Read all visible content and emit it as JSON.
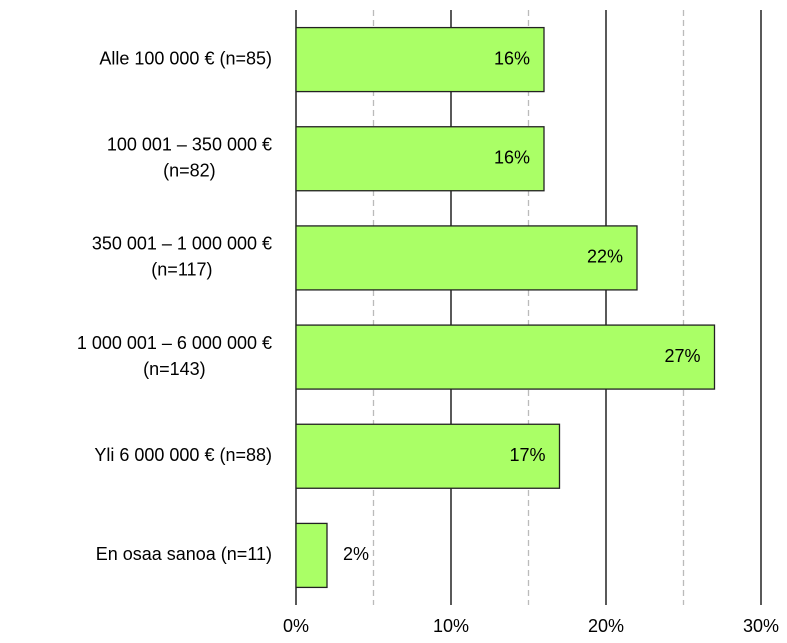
{
  "chart_data": {
    "type": "barh",
    "categories": [
      [
        "Alle 100 000 €  (n=85)"
      ],
      [
        "100 001 – 350 000 €",
        "(n=82)"
      ],
      [
        "350 001 – 1 000 000 €",
        "(n=117)"
      ],
      [
        "1 000 001 – 6 000 000 €",
        "(n=143)"
      ],
      [
        "Yli 6 000 000 € (n=88)"
      ],
      [
        "En osaa sanoa (n=11)"
      ]
    ],
    "values": [
      16,
      16,
      22,
      27,
      17,
      2
    ],
    "value_labels": [
      "16%",
      "16%",
      "22%",
      "27%",
      "17%",
      "2%"
    ],
    "color": "#aaff66",
    "xlim": [
      0,
      30
    ],
    "xticks": [
      {
        "value": 0,
        "label": "0%"
      },
      {
        "value": 10,
        "label": "10%"
      },
      {
        "value": 20,
        "label": "20%"
      },
      {
        "value": 30,
        "label": "30%"
      }
    ],
    "minor_gridlines": [
      5,
      15,
      25
    ],
    "grid": true
  }
}
